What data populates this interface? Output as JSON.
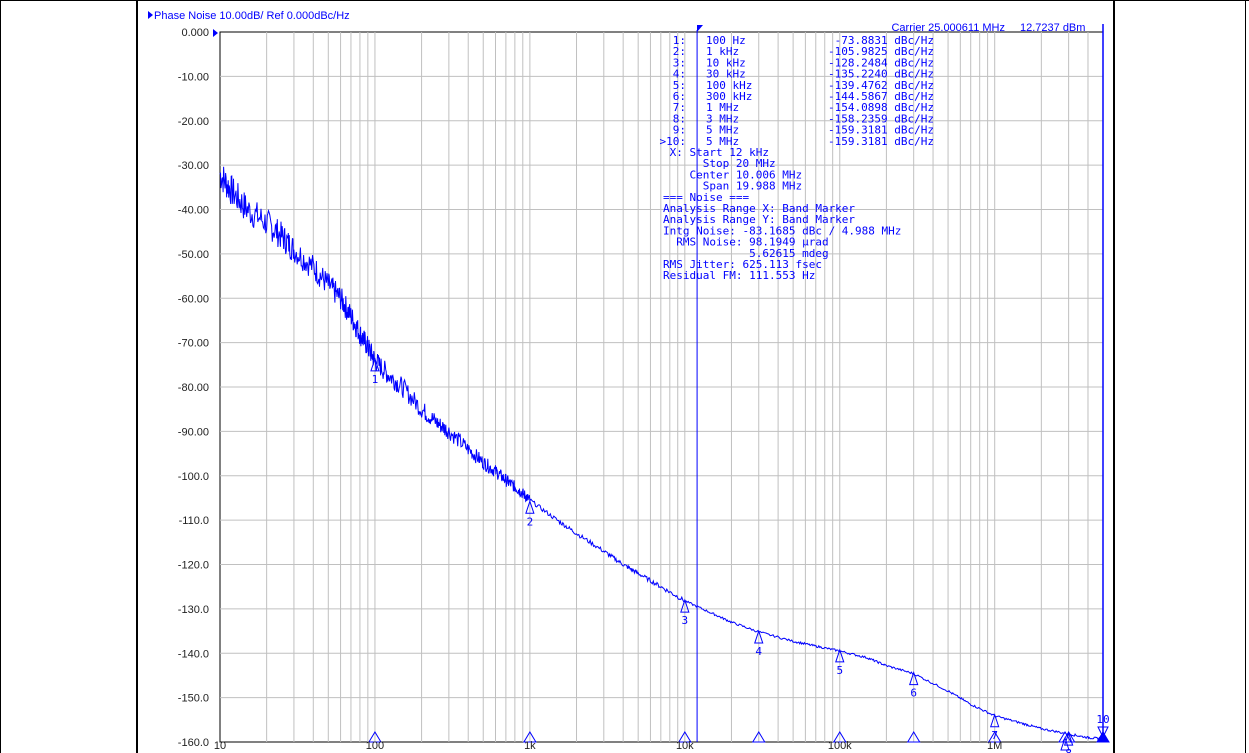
{
  "chart_data": {
    "type": "line",
    "title": "Phase Noise 10.00dB/ Ref 0.000dBc/Hz",
    "carrier_label": "Carrier 25.000611 MHz",
    "carrier_power": "12.7237 dBm",
    "x_scale": "log",
    "xlim": [
      10,
      5000000
    ],
    "ylim": [
      -160,
      0
    ],
    "grid": true,
    "y_ticks": [
      {
        "value": 0,
        "label": "0.000"
      },
      {
        "value": -10,
        "label": "-10.00"
      },
      {
        "value": -20,
        "label": "-20.00"
      },
      {
        "value": -30,
        "label": "-30.00"
      },
      {
        "value": -40,
        "label": "-40.00"
      },
      {
        "value": -50,
        "label": "-50.00"
      },
      {
        "value": -60,
        "label": "-60.00"
      },
      {
        "value": -70,
        "label": "-70.00"
      },
      {
        "value": -80,
        "label": "-80.00"
      },
      {
        "value": -90,
        "label": "-90.00"
      },
      {
        "value": -100,
        "label": "-100.0"
      },
      {
        "value": -110,
        "label": "-110.0"
      },
      {
        "value": -120,
        "label": "-120.0"
      },
      {
        "value": -130,
        "label": "-130.0"
      },
      {
        "value": -140,
        "label": "-140.0"
      },
      {
        "value": -150,
        "label": "-150.0"
      },
      {
        "value": -160,
        "label": "-160.0"
      }
    ],
    "x_ticks": [
      {
        "value": 10,
        "label": "10"
      },
      {
        "value": 100,
        "label": "100"
      },
      {
        "value": 1000,
        "label": "1k"
      },
      {
        "value": 10000,
        "label": "10k"
      },
      {
        "value": 100000,
        "label": "100k"
      },
      {
        "value": 1000000,
        "label": "1M"
      }
    ],
    "series": [
      {
        "color": "#0000ff",
        "points": [
          [
            10,
            -32
          ],
          [
            12,
            -36
          ],
          [
            15,
            -40
          ],
          [
            20,
            -43
          ],
          [
            25,
            -46
          ],
          [
            30,
            -49
          ],
          [
            40,
            -53
          ],
          [
            50,
            -57
          ],
          [
            60,
            -60
          ],
          [
            70,
            -64
          ],
          [
            80,
            -68
          ],
          [
            90,
            -71
          ],
          [
            100,
            -74
          ],
          [
            120,
            -77
          ],
          [
            150,
            -80
          ],
          [
            200,
            -85
          ],
          [
            250,
            -88
          ],
          [
            300,
            -90
          ],
          [
            400,
            -94
          ],
          [
            500,
            -97
          ],
          [
            600,
            -99
          ],
          [
            700,
            -101
          ],
          [
            800,
            -102.5
          ],
          [
            900,
            -104
          ],
          [
            1000,
            -105.5
          ],
          [
            1500,
            -110
          ],
          [
            2000,
            -113
          ],
          [
            3000,
            -117
          ],
          [
            4000,
            -120
          ],
          [
            5000,
            -122
          ],
          [
            7000,
            -125
          ],
          [
            10000,
            -128.2
          ],
          [
            15000,
            -131
          ],
          [
            20000,
            -133
          ],
          [
            30000,
            -135.2
          ],
          [
            50000,
            -137.3
          ],
          [
            70000,
            -138.4
          ],
          [
            100000,
            -139.5
          ],
          [
            150000,
            -141
          ],
          [
            200000,
            -142.8
          ],
          [
            300000,
            -144.6
          ],
          [
            500000,
            -148.5
          ],
          [
            700000,
            -151.5
          ],
          [
            1000000,
            -154.1
          ],
          [
            1500000,
            -155.8
          ],
          [
            2000000,
            -157
          ],
          [
            3000000,
            -158.2
          ],
          [
            4000000,
            -159
          ],
          [
            5000000,
            -159.3
          ]
        ]
      }
    ],
    "markers": [
      {
        "id": "1",
        "freq_label": "100 Hz",
        "x": 100,
        "y": -73.8831,
        "value_label": "-73.8831 dBc/Hz"
      },
      {
        "id": "2",
        "freq_label": "1 kHz",
        "x": 1000,
        "y": -105.9825,
        "value_label": "-105.9825 dBc/Hz"
      },
      {
        "id": "3",
        "freq_label": "10 kHz",
        "x": 10000,
        "y": -128.2484,
        "value_label": "-128.2484 dBc/Hz"
      },
      {
        "id": "4",
        "freq_label": "30 kHz",
        "x": 30000,
        "y": -135.224,
        "value_label": "-135.2240 dBc/Hz"
      },
      {
        "id": "5",
        "freq_label": "100 kHz",
        "x": 100000,
        "y": -139.4762,
        "value_label": "-139.4762 dBc/Hz"
      },
      {
        "id": "6",
        "freq_label": "300 kHz",
        "x": 300000,
        "y": -144.5867,
        "value_label": "-144.5867 dBc/Hz"
      },
      {
        "id": "7",
        "freq_label": "1 MHz",
        "x": 1000000,
        "y": -154.0898,
        "value_label": "-154.0898 dBc/Hz"
      },
      {
        "id": "8",
        "freq_label": "3 MHz",
        "x": 3000000,
        "y": -158.2359,
        "value_label": "-158.2359 dBc/Hz"
      },
      {
        "id": "9",
        "freq_label": "5 MHz",
        "x": 5000000,
        "y": -159.3181,
        "value_label": "-159.3181 dBc/Hz"
      },
      {
        "id": "10",
        "freq_label": "5 MHz",
        "x": 5000000,
        "y": -159.3181,
        "value_label": "-159.3181 dBc/Hz",
        "active": true
      }
    ],
    "band_marker": {
      "start": 12000,
      "stop": 20000000
    },
    "readout_lines": [
      " X: Start 12 kHz",
      "      Stop 20 MHz",
      "    Center 10.006 MHz",
      "      Span 19.988 MHz",
      "=== Noise ===",
      "Analysis Range X: Band Marker",
      "Analysis Range Y: Band Marker",
      "Intg Noise: -83.1685 dBc / 4.988 MHz",
      "  RMS Noise: 98.1949 µrad",
      "             5.62615 mdeg",
      "RMS Jitter: 625.113 fsec",
      "Residual FM: 111.553 Hz"
    ],
    "colors": {
      "trace": "#0000ff",
      "grid": "#c0c0c0",
      "text": "#0000ff"
    }
  }
}
